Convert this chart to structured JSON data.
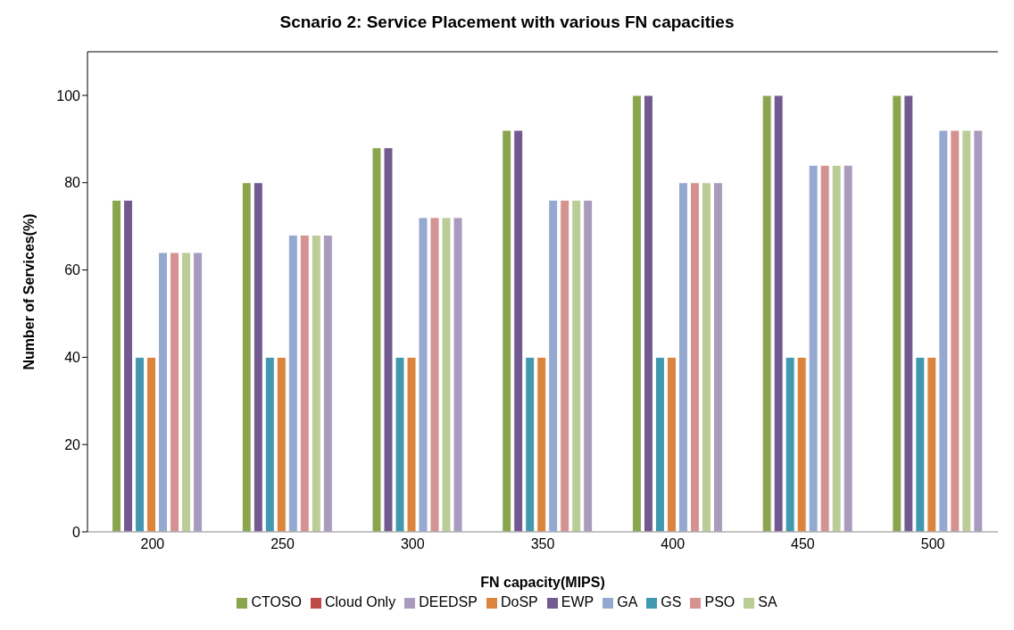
{
  "chart_data": {
    "type": "bar",
    "title": "Scnario 2: Service Placement with various FN capacities",
    "xlabel": "FN  capacity(MIPS)",
    "ylabel": "Number of Services(%)",
    "categories": [
      "200",
      "250",
      "300",
      "350",
      "400",
      "450",
      "500"
    ],
    "series": [
      {
        "name": "Cloud Only",
        "color": "#be4b48",
        "values": [
          0,
          0,
          0,
          0,
          0,
          0,
          0
        ]
      },
      {
        "name": "CTOSO",
        "color": "#8ba54e",
        "values": [
          76,
          80,
          88,
          92,
          100,
          100,
          100
        ]
      },
      {
        "name": "EWP",
        "color": "#725a90",
        "values": [
          76,
          80,
          88,
          92,
          100,
          100,
          100
        ]
      },
      {
        "name": "GS",
        "color": "#4298af",
        "values": [
          40,
          40,
          40,
          40,
          40,
          40,
          40
        ]
      },
      {
        "name": "DoSP",
        "color": "#db843d",
        "values": [
          40,
          40,
          40,
          40,
          40,
          40,
          40
        ]
      },
      {
        "name": "GA",
        "color": "#95a9d0",
        "values": [
          64,
          68,
          72,
          76,
          80,
          84,
          92
        ]
      },
      {
        "name": "PSO",
        "color": "#d49291",
        "values": [
          64,
          68,
          72,
          76,
          80,
          84,
          92
        ]
      },
      {
        "name": "SA",
        "color": "#bacd96",
        "values": [
          64,
          68,
          72,
          76,
          80,
          84,
          92
        ]
      },
      {
        "name": "DEEDSP",
        "color": "#a99bbd",
        "values": [
          64,
          68,
          72,
          76,
          80,
          84,
          92
        ]
      }
    ],
    "ylim": [
      0,
      110
    ],
    "yticks": [
      0,
      20,
      40,
      60,
      80,
      100
    ],
    "grid": false,
    "legend": "bottom"
  }
}
